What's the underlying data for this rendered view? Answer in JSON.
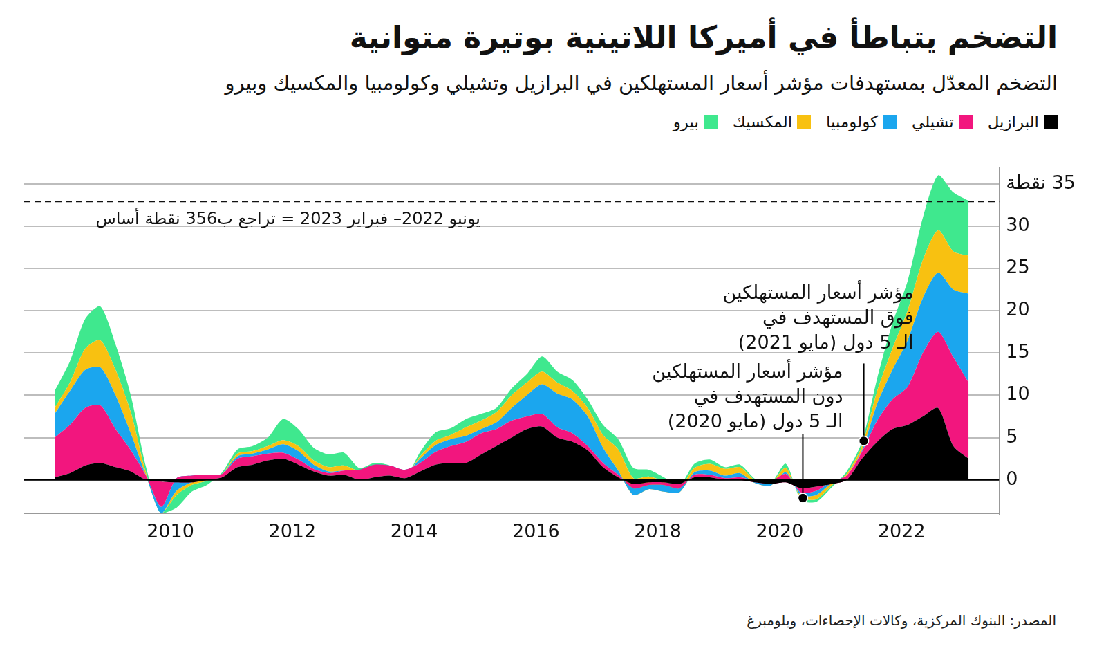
{
  "chart_data": {
    "type": "area",
    "title": "التضخم يتباطأ في أميركا اللاتينية بوتيرة متوانية",
    "subtitle": "التضخم المعدّل بمستهدفات مؤشر أسعار المستهلكين في البرازيل وتشيلي وكولومبيا والمكسيك وبيرو",
    "source": "المصدر: البنوك المركزية، وكالات الإحصاءات، وبلومبرغ",
    "stacked": true,
    "grid": true,
    "legend": "top-right",
    "x": [
      2008.1,
      2008.35,
      2008.6,
      2008.85,
      2009.1,
      2009.35,
      2009.6,
      2009.85,
      2010.1,
      2010.35,
      2010.6,
      2010.85,
      2011.1,
      2011.35,
      2011.6,
      2011.85,
      2012.1,
      2012.35,
      2012.6,
      2012.85,
      2013.1,
      2013.35,
      2013.6,
      2013.85,
      2014.1,
      2014.35,
      2014.6,
      2014.85,
      2015.1,
      2015.35,
      2015.6,
      2015.85,
      2016.1,
      2016.35,
      2016.6,
      2016.85,
      2017.1,
      2017.35,
      2017.6,
      2017.85,
      2018.1,
      2018.35,
      2018.6,
      2018.85,
      2019.1,
      2019.35,
      2019.6,
      2019.85,
      2020.1,
      2020.35,
      2020.6,
      2020.85,
      2021.1,
      2021.35,
      2021.6,
      2021.85,
      2022.1,
      2022.35,
      2022.6,
      2022.85,
      2023.1
    ],
    "xlim": [
      2007.6,
      2023.6
    ],
    "xticks": [
      2010,
      2012,
      2014,
      2016,
      2018,
      2020,
      2022
    ],
    "ylim": [
      -4,
      37
    ],
    "yticks": [
      0,
      5,
      10,
      15,
      20,
      25,
      30,
      {
        "value": 35,
        "label": "35 نقطة"
      }
    ],
    "series": [
      {
        "name": "البرازيل",
        "color": "#000000",
        "values": [
          0.3,
          0.8,
          1.7,
          2.0,
          1.5,
          1.0,
          0,
          -0.2,
          -0.3,
          -0.3,
          0,
          0.3,
          1.5,
          1.8,
          2.3,
          2.5,
          1.8,
          1.0,
          0.5,
          0.6,
          0,
          0.3,
          0.5,
          0.2,
          1.0,
          1.8,
          2.0,
          2.0,
          3.0,
          4.0,
          5.0,
          6.0,
          6.3,
          5.0,
          4.5,
          3.5,
          1.5,
          0.3,
          -0.5,
          -0.3,
          -0.3,
          -0.5,
          0.3,
          0.3,
          0,
          0,
          -0.3,
          -0.5,
          -0.3,
          -1.0,
          -0.8,
          -0.5,
          0,
          2.5,
          4.5,
          6.0,
          6.5,
          7.5,
          8.5,
          4.0,
          2.5
        ]
      },
      {
        "name": "تشيلي",
        "color": "#f2167e",
        "values": [
          4.7,
          5.7,
          6.8,
          6.8,
          4.5,
          2.5,
          0.5,
          -3.0,
          0.5,
          0.8,
          0.6,
          0.4,
          1.0,
          1.0,
          0.8,
          0.7,
          0.6,
          0.3,
          0.3,
          0.5,
          1.2,
          1.5,
          1.2,
          1.0,
          1.0,
          1.5,
          2.0,
          2.5,
          2.5,
          2.0,
          2.0,
          1.5,
          1.5,
          1.2,
          1.0,
          0.5,
          0.5,
          0.3,
          -0.5,
          -0.3,
          -0.3,
          -0.5,
          0.3,
          0.3,
          0.2,
          0.3,
          0.2,
          0.3,
          1.0,
          -0.5,
          -0.5,
          0.3,
          0.5,
          0.8,
          2.5,
          3.5,
          4.5,
          7.5,
          9.0,
          10.5,
          9.0
        ]
      },
      {
        "name": "كولومبيا",
        "color": "#1ba6ee",
        "values": [
          2.8,
          4.0,
          4.5,
          4.5,
          4.0,
          2.0,
          0,
          -0.8,
          -1.5,
          -0.8,
          -0.5,
          0,
          0.3,
          0.3,
          0.5,
          1.0,
          1.0,
          0.5,
          0.2,
          0,
          -0.3,
          -0.3,
          -0.2,
          -0.5,
          0.5,
          0.8,
          0.8,
          0.7,
          0.5,
          0.8,
          1.5,
          2.5,
          3.5,
          4.0,
          4.0,
          3.5,
          1.8,
          0.5,
          -0.8,
          -0.5,
          -0.8,
          -0.5,
          0.3,
          0.5,
          0.3,
          0.5,
          -0.3,
          -0.5,
          0.2,
          -0.3,
          -0.5,
          -0.2,
          0,
          0.2,
          2.0,
          3.5,
          5.5,
          6.5,
          7.0,
          8.0,
          10.5
        ]
      },
      {
        "name": "المكسيك",
        "color": "#f8c111",
        "values": [
          0.7,
          1.0,
          2.5,
          3.2,
          3.0,
          2.5,
          0.3,
          0,
          -0.5,
          -0.3,
          -0.2,
          0,
          0.3,
          0.3,
          0.4,
          0.5,
          0.6,
          0.5,
          0.5,
          0.6,
          0.2,
          0.2,
          0,
          -0.2,
          0.3,
          0.5,
          0.5,
          1.0,
          1.0,
          1.2,
          1.5,
          1.5,
          1.5,
          1.3,
          1.0,
          1.0,
          1.5,
          2.5,
          2.0,
          1.5,
          1.2,
          0.5,
          0.5,
          0.8,
          0.8,
          0.7,
          0.3,
          0.3,
          0.5,
          -0.3,
          -0.5,
          -0.3,
          0.2,
          0.5,
          1.5,
          2.5,
          3.5,
          4.5,
          5.0,
          4.5,
          4.5
        ]
      },
      {
        "name": "بيرو",
        "color": "#3fe88e",
        "values": [
          2.0,
          2.5,
          3.5,
          4.0,
          3.0,
          2.0,
          0.7,
          0,
          -1.5,
          -0.8,
          -0.5,
          0.2,
          0.5,
          0.6,
          1.0,
          2.5,
          2.0,
          1.5,
          1.5,
          1.5,
          0.3,
          0.3,
          0.2,
          -0.2,
          0.5,
          1.0,
          0.8,
          1.0,
          0.8,
          0.5,
          0.8,
          1.0,
          1.8,
          1.3,
          1.3,
          1.0,
          1.2,
          1.2,
          1.2,
          0.8,
          0.5,
          0.3,
          0.5,
          0.5,
          0.2,
          0.3,
          0.2,
          0,
          0.5,
          -0.3,
          -0.3,
          -0.2,
          0.3,
          0.5,
          1.5,
          3.0,
          3.5,
          5.0,
          6.5,
          7.0,
          6.5
        ]
      }
    ],
    "reference_line": {
      "value": 32.9,
      "line_style": "dashed",
      "label": "يونيو 2022– فبراير 2023 = تراجع ب356 نقطة أساس"
    },
    "annotations": [
      {
        "x": 2021.38,
        "y": 4.6,
        "marker": "dot",
        "label": [
          "مؤشر أسعار المستهلكين",
          "فوق المستهدف في",
          "الـ 5 دول (مايو 2021)"
        ]
      },
      {
        "x": 2020.38,
        "y": -2.15,
        "marker": "dot",
        "label": [
          "مؤشر أسعار المستهلكين",
          "دون المستهدف في",
          "الـ 5 دول (مايو 2020)"
        ]
      }
    ]
  }
}
